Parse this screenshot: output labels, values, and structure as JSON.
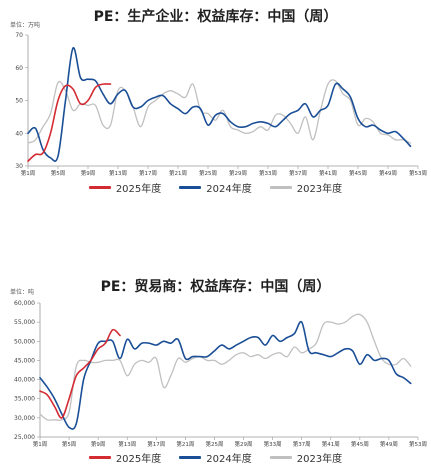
{
  "chart_data": [
    {
      "type": "line",
      "title": "PE：生产企业：权益库存：中国（周）",
      "unit": "单位：万吨",
      "ylim": [
        30,
        70
      ],
      "yticks": [
        "30",
        "40",
        "50",
        "60",
        "70"
      ],
      "xlim": [
        1,
        53
      ],
      "xticks": [
        "第1周",
        "第5周",
        "第9周",
        "第13周",
        "第17周",
        "第21周",
        "第25周",
        "第29周",
        "第33周",
        "第37周",
        "第41周",
        "第45周",
        "第49周",
        "第53周"
      ],
      "legend": "bottom",
      "grid": false,
      "series": [
        {
          "name": "2025年度",
          "color": "#d42a32",
          "x": [
            1,
            2,
            3,
            4,
            5,
            6,
            7,
            8,
            9,
            10,
            11,
            12
          ],
          "y": [
            31.5,
            33.5,
            34,
            40,
            50,
            54.5,
            53.5,
            49,
            50,
            54,
            55,
            55
          ]
        },
        {
          "name": "2024年度",
          "color": "#1a4e96",
          "x": [
            1,
            2,
            3,
            4,
            5,
            6,
            7,
            8,
            9,
            10,
            11,
            12,
            13,
            14,
            15,
            16,
            17,
            18,
            19,
            20,
            21,
            22,
            23,
            24,
            25,
            26,
            27,
            28,
            29,
            30,
            31,
            32,
            33,
            34,
            35,
            36,
            37,
            38,
            39,
            40,
            41,
            42,
            43,
            44,
            45,
            46,
            47,
            48,
            49,
            50,
            51,
            52
          ],
          "y": [
            40,
            41.5,
            35,
            32.5,
            33,
            50,
            66,
            57,
            56.5,
            56,
            52,
            49,
            52,
            53,
            48,
            48,
            50,
            51,
            51.5,
            49,
            47.5,
            46,
            48,
            47.5,
            42.5,
            45.5,
            46,
            43.5,
            42,
            42,
            43,
            43.5,
            43,
            42,
            44,
            46,
            47,
            49,
            45,
            47,
            48.5,
            55,
            53.5,
            51,
            44.5,
            42,
            42.5,
            41,
            40,
            40.5,
            38.5,
            36
          ]
        },
        {
          "name": "2023年度",
          "color": "#c0c0c0",
          "x": [
            1,
            2,
            3,
            4,
            5,
            6,
            7,
            8,
            9,
            10,
            11,
            12,
            13,
            14,
            15,
            16,
            17,
            18,
            19,
            20,
            21,
            22,
            23,
            24,
            25,
            26,
            27,
            28,
            29,
            30,
            31,
            32,
            33,
            34,
            35,
            36,
            37,
            38,
            39,
            40,
            41,
            42,
            43,
            44,
            45,
            46,
            47,
            48,
            49,
            50,
            51,
            52
          ],
          "y": [
            37,
            38,
            42,
            46,
            55.5,
            53,
            47,
            49,
            48.5,
            48.5,
            42.5,
            42.5,
            53,
            53,
            48,
            42,
            48,
            50,
            52,
            53,
            52,
            51,
            55,
            47,
            46,
            44,
            47,
            42,
            41,
            40,
            40.5,
            42,
            41,
            45.5,
            45.5,
            43,
            40,
            45,
            38,
            47,
            55,
            56,
            52,
            50,
            42.5,
            44.5,
            43.5,
            40,
            39.5,
            38,
            38,
            37
          ]
        }
      ]
    },
    {
      "type": "line",
      "title": "PE：贸易商：权益库存：中国（周）",
      "unit": "单位：吨",
      "ylim": [
        25000,
        60000
      ],
      "yticks": [
        "25,000",
        "30,000",
        "35,000",
        "40,000",
        "45,000",
        "50,000",
        "55,000",
        "60,000"
      ],
      "xlim": [
        1,
        53
      ],
      "xticks": [
        "第1周",
        "第5周",
        "第9周",
        "第13周",
        "第17周",
        "第21周",
        "第25周",
        "第29周",
        "第33周",
        "第37周",
        "第41周",
        "第45周",
        "第49周",
        "第53周"
      ],
      "legend": "bottom",
      "grid": false,
      "series": [
        {
          "name": "2025年度",
          "color": "#d42a32",
          "x": [
            1,
            2,
            3,
            4,
            5,
            6,
            7,
            8,
            9,
            10,
            11,
            12
          ],
          "y": [
            37000,
            36000,
            33000,
            30000,
            35000,
            41000,
            43000,
            45000,
            48000,
            49500,
            53000,
            51500
          ]
        },
        {
          "name": "2024年度",
          "color": "#1a4e96",
          "x": [
            1,
            2,
            3,
            4,
            5,
            6,
            7,
            8,
            9,
            10,
            11,
            12,
            13,
            14,
            15,
            16,
            17,
            18,
            19,
            20,
            21,
            22,
            23,
            24,
            25,
            26,
            27,
            28,
            29,
            30,
            31,
            32,
            33,
            34,
            35,
            36,
            37,
            38,
            39,
            40,
            41,
            42,
            43,
            44,
            45,
            46,
            47,
            48,
            49,
            50,
            51,
            52
          ],
          "y": [
            40500,
            38000,
            35000,
            31000,
            27500,
            28500,
            40000,
            45000,
            49500,
            50000,
            50000,
            45500,
            50500,
            48000,
            49500,
            49500,
            49000,
            50000,
            49500,
            50500,
            45500,
            46000,
            46000,
            46000,
            47500,
            49000,
            48000,
            49000,
            50000,
            51000,
            51000,
            49000,
            51500,
            50000,
            51000,
            52000,
            55000,
            47500,
            47000,
            46500,
            46000,
            47000,
            48000,
            47500,
            44000,
            46500,
            45000,
            45500,
            45000,
            41500,
            40500,
            39000
          ]
        },
        {
          "name": "2023年度",
          "color": "#c0c0c0",
          "x": [
            1,
            2,
            3,
            4,
            5,
            6,
            7,
            8,
            9,
            10,
            11,
            12,
            13,
            14,
            15,
            16,
            17,
            18,
            19,
            20,
            21,
            22,
            23,
            24,
            25,
            26,
            27,
            28,
            29,
            30,
            31,
            32,
            33,
            34,
            35,
            36,
            37,
            38,
            39,
            40,
            41,
            42,
            43,
            44,
            45,
            46,
            47,
            48,
            49,
            50,
            51,
            52
          ],
          "y": [
            31000,
            29500,
            29500,
            29500,
            31500,
            43500,
            45000,
            44500,
            44500,
            45000,
            45000,
            45000,
            41000,
            44000,
            45000,
            44500,
            45500,
            38000,
            41000,
            45500,
            44500,
            45500,
            46000,
            45000,
            45000,
            44000,
            45000,
            46500,
            47000,
            46000,
            46500,
            45500,
            46500,
            47000,
            46000,
            48500,
            47000,
            48000,
            49500,
            54500,
            55000,
            54500,
            55000,
            56500,
            57000,
            55000,
            50000,
            45500,
            44000,
            44000,
            45500,
            43500
          ]
        }
      ]
    }
  ]
}
